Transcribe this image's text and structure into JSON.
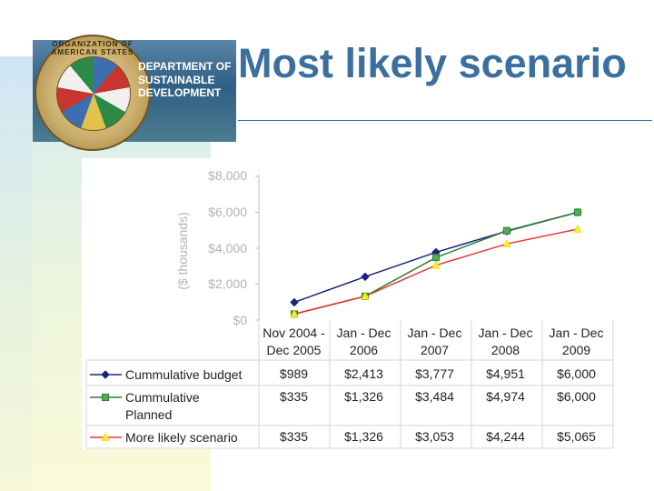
{
  "slide": {
    "title": "Most likely scenario",
    "logo": {
      "seal_text": "ORGANIZATION OF AMERICAN STATES",
      "department_lines": [
        "DEPARTMENT OF",
        "SUSTAINABLE",
        "DEVELOPMENT"
      ]
    }
  },
  "colors": {
    "title": "#3a6fa0",
    "budget": "#1a237e",
    "planned": "#2e7d32",
    "likely_line": "#e53935",
    "likely_marker": "#f7ee26",
    "axis_text": "#b3b3b3"
  },
  "chart_data": {
    "type": "line",
    "title": "",
    "ylabel": "($ thousands)",
    "xlabel": "",
    "ylim": [
      0,
      8000
    ],
    "yticks": [
      0,
      2000,
      4000,
      6000,
      8000
    ],
    "ytick_labels": [
      "$0",
      "$2,000",
      "$4,000",
      "$6,000",
      "$8,000"
    ],
    "categories": [
      [
        "Nov 2004 -",
        "Dec 2005"
      ],
      [
        "Jan - Dec",
        "2006"
      ],
      [
        "Jan - Dec",
        "2007"
      ],
      [
        "Jan - Dec",
        "2008"
      ],
      [
        "Jan - Dec",
        "2009"
      ]
    ],
    "series": [
      {
        "name_lines": [
          "Cummulative budget"
        ],
        "marker": "diamond",
        "color": "#1a237e",
        "values": [
          989,
          2413,
          3777,
          4951,
          6000
        ],
        "labels": [
          "$989",
          "$2,413",
          "$3,777",
          "$4,951",
          "$6,000"
        ]
      },
      {
        "name_lines": [
          "Cummulative",
          "Planned"
        ],
        "marker": "square",
        "color": "#2e7d32",
        "values": [
          335,
          1326,
          3484,
          4974,
          6000
        ],
        "labels": [
          "$335",
          "$1,326",
          "$3,484",
          "$4,974",
          "$6,000"
        ]
      },
      {
        "name_lines": [
          "More likely scenario"
        ],
        "marker": "triangle",
        "color": "#e53935",
        "marker_color": "#f7ee26",
        "values": [
          335,
          1326,
          3053,
          4244,
          5065
        ],
        "labels": [
          "$335",
          "$1,326",
          "$3,053",
          "$4,244",
          "$5,065"
        ]
      }
    ]
  }
}
